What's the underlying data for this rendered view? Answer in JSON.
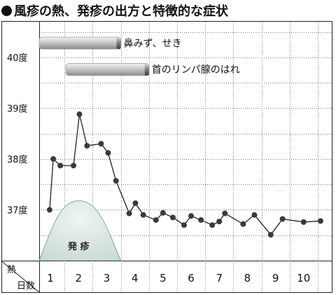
{
  "title": "風疹の熱、発疹の出方と特徴的な症状",
  "colors": {
    "line": "#111111",
    "marker": "#3a3a3a",
    "rash_fill": "#dde8e4",
    "bar_fill": "#c4c4c4",
    "grid": "#777777"
  },
  "chart_data": {
    "type": "line",
    "title": "風疹の熱、発疹の出方と特徴的な症状",
    "xlabel": "日数",
    "ylabel": "熱",
    "x_ticks": [
      1,
      2,
      3,
      4,
      5,
      6,
      7,
      8,
      9,
      10
    ],
    "y_ticks": [
      {
        "value": 37,
        "label": "37度"
      },
      {
        "value": 38,
        "label": "38度"
      },
      {
        "value": 39,
        "label": "39度"
      },
      {
        "value": 40,
        "label": "40度"
      }
    ],
    "xlim": [
      0.6,
      11.0
    ],
    "ylim": [
      36.0,
      40.7
    ],
    "grid": true,
    "series": [
      {
        "points": [
          [
            0.97,
            37.0
          ],
          [
            1.1,
            38.0
          ],
          [
            1.35,
            37.87
          ],
          [
            1.82,
            37.87
          ],
          [
            2.03,
            38.88
          ],
          [
            2.3,
            38.26
          ],
          [
            2.8,
            38.3
          ],
          [
            3.05,
            38.12
          ],
          [
            3.33,
            37.57
          ],
          [
            3.8,
            36.93
          ],
          [
            4.02,
            37.13
          ],
          [
            4.3,
            36.9
          ],
          [
            4.75,
            36.8
          ],
          [
            5.0,
            36.94
          ],
          [
            5.35,
            36.85
          ],
          [
            5.75,
            36.7
          ],
          [
            6.0,
            36.88
          ],
          [
            6.35,
            36.8
          ],
          [
            6.75,
            36.7
          ],
          [
            7.0,
            36.77
          ],
          [
            7.2,
            36.93
          ],
          [
            7.85,
            36.72
          ],
          [
            8.25,
            36.9
          ],
          [
            8.83,
            36.51
          ],
          [
            9.25,
            36.82
          ],
          [
            10.0,
            36.76
          ],
          [
            10.6,
            36.78
          ]
        ]
      }
    ],
    "annotations": [
      {
        "label": "鼻みず、せき",
        "type": "bar",
        "x_start": 0.6,
        "x_end": 3.5,
        "y": 40.28
      },
      {
        "label": "首のリンパ腺のはれ",
        "type": "bar",
        "x_start": 1.55,
        "x_end": 4.5,
        "y": 39.76
      },
      {
        "label": "発 疹",
        "type": "rash-area",
        "x_start": 0.6,
        "x_peak": 2.0,
        "x_end": 3.5,
        "peak": 37.18
      }
    ]
  }
}
